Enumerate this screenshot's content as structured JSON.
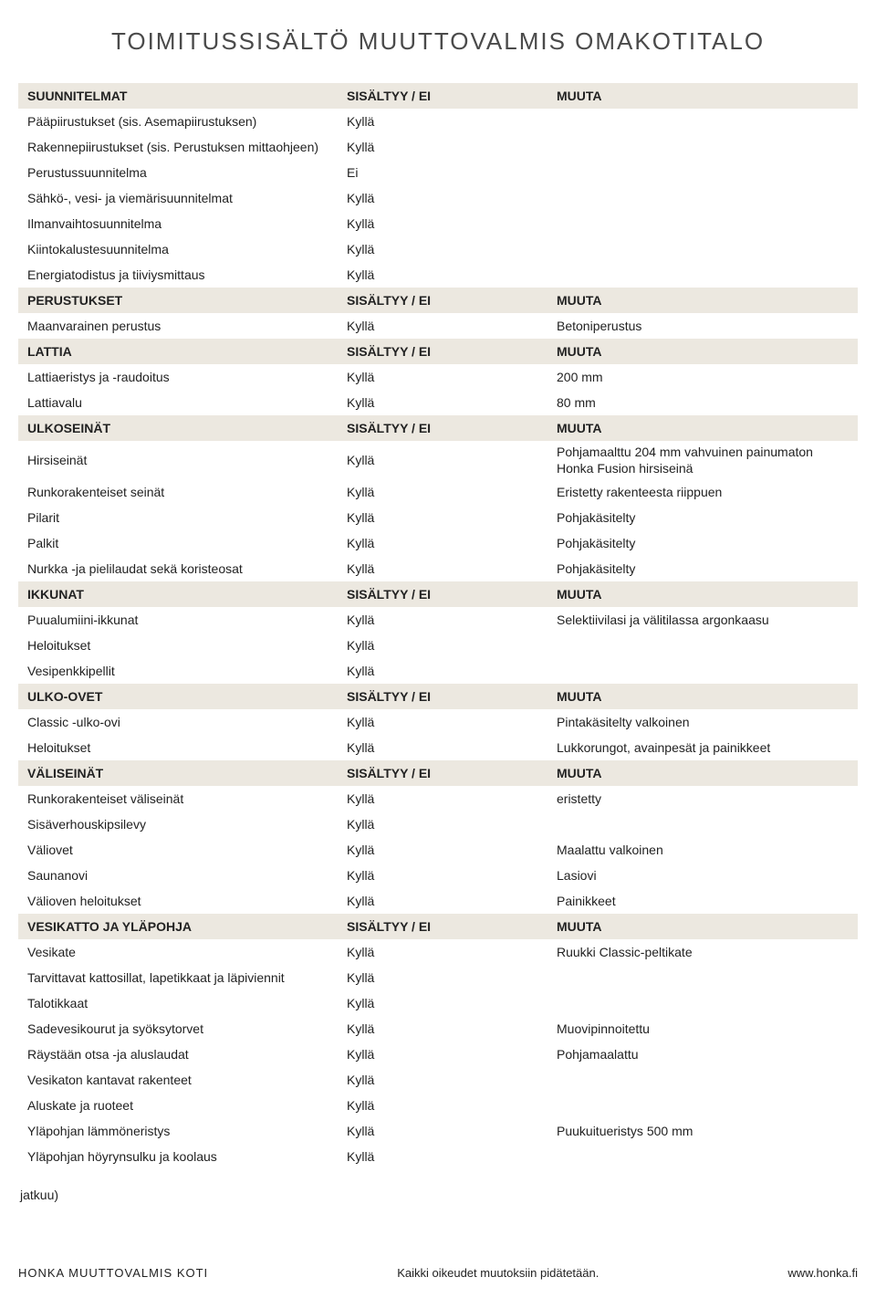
{
  "title": "TOIMITUSSISÄLTÖ MUUTTOVALMIS OMAKOTITALO",
  "col_sisaltyy": "SISÄLTYY / EI",
  "col_muuta": "MUUTA",
  "sections": [
    {
      "header": "SUUNNITELMAT",
      "rows": [
        {
          "label": "Pääpiirustukset (sis. Asemapiirustuksen)",
          "val": "Kyllä",
          "note": ""
        },
        {
          "label": "Rakennepiirustukset (sis. Perustuksen mittaohjeen)",
          "val": "Kyllä",
          "note": ""
        },
        {
          "label": "Perustussuunnitelma",
          "val": "Ei",
          "note": ""
        },
        {
          "label": "Sähkö-, vesi- ja viemärisuunnitelmat",
          "val": "Kyllä",
          "note": ""
        },
        {
          "label": "Ilmanvaihtosuunnitelma",
          "val": "Kyllä",
          "note": ""
        },
        {
          "label": "Kiintokalustesuunnitelma",
          "val": "Kyllä",
          "note": ""
        },
        {
          "label": "Energiatodistus ja tiiviysmittaus",
          "val": "Kyllä",
          "note": ""
        }
      ]
    },
    {
      "header": "PERUSTUKSET",
      "rows": [
        {
          "label": "Maanvarainen perustus",
          "val": "Kyllä",
          "note": "Betoniperustus"
        }
      ]
    },
    {
      "header": "LATTIA",
      "rows": [
        {
          "label": "Lattiaeristys ja -raudoitus",
          "val": "Kyllä",
          "note": "200 mm"
        },
        {
          "label": "Lattiavalu",
          "val": "Kyllä",
          "note": "80 mm"
        }
      ]
    },
    {
      "header": "ULKOSEINÄT",
      "rows": [
        {
          "label": "Hirsiseinät",
          "val": "Kyllä",
          "note": "Pohjamaalttu 204 mm vahvuinen painumaton Honka Fusion hirsiseinä"
        },
        {
          "label": "Runkorakenteiset seinät",
          "val": "Kyllä",
          "note": "Eristetty rakenteesta riippuen"
        },
        {
          "label": "Pilarit",
          "val": "Kyllä",
          "note": "Pohjakäsitelty"
        },
        {
          "label": "Palkit",
          "val": "Kyllä",
          "note": "Pohjakäsitelty"
        },
        {
          "label": "Nurkka -ja pielilaudat sekä koristeosat",
          "val": "Kyllä",
          "note": "Pohjakäsitelty"
        }
      ]
    },
    {
      "header": "IKKUNAT",
      "rows": [
        {
          "label": "Puualumiini-ikkunat",
          "val": "Kyllä",
          "note": "Selektiivilasi ja välitilassa argonkaasu"
        },
        {
          "label": "Heloitukset",
          "val": "Kyllä",
          "note": ""
        },
        {
          "label": "Vesipenkkipellit",
          "val": "Kyllä",
          "note": ""
        }
      ]
    },
    {
      "header": "ULKO-OVET",
      "rows": [
        {
          "label": "Classic -ulko-ovi",
          "val": "Kyllä",
          "note": "Pintakäsitelty valkoinen"
        },
        {
          "label": "Heloitukset",
          "val": "Kyllä",
          "note": "Lukkorungot, avainpesät ja painikkeet"
        }
      ]
    },
    {
      "header": "VÄLISEINÄT",
      "rows": [
        {
          "label": "Runkorakenteiset väliseinät",
          "val": "Kyllä",
          "note": "eristetty"
        },
        {
          "label": "Sisäverhouskipsilevy",
          "val": "Kyllä",
          "note": ""
        },
        {
          "label": "Väliovet",
          "val": "Kyllä",
          "note": "Maalattu valkoinen"
        },
        {
          "label": "Saunanovi",
          "val": "Kyllä",
          "note": "Lasiovi"
        },
        {
          "label": "Välioven heloitukset",
          "val": "Kyllä",
          "note": "Painikkeet"
        }
      ]
    },
    {
      "header": "VESIKATTO JA YLÄPOHJA",
      "rows": [
        {
          "label": "Vesikate",
          "val": "Kyllä",
          "note": "Ruukki Classic-peltikate"
        },
        {
          "label": "Tarvittavat kattosillat, lapetikkaat ja läpiviennit",
          "val": "Kyllä",
          "note": ""
        },
        {
          "label": "Talotikkaat",
          "val": "Kyllä",
          "note": ""
        },
        {
          "label": "Sadevesikourut ja syöksytorvet",
          "val": "Kyllä",
          "note": "Muovipinnoitettu"
        },
        {
          "label": "Räystään otsa -ja aluslaudat",
          "val": "Kyllä",
          "note": "Pohjamaalattu"
        },
        {
          "label": "Vesikaton kantavat rakenteet",
          "val": "Kyllä",
          "note": ""
        },
        {
          "label": "Aluskate ja ruoteet",
          "val": "Kyllä",
          "note": ""
        },
        {
          "label": "Yläpohjan lämmöneristys",
          "val": "Kyllä",
          "note": "Puukuitueristys 500 mm"
        },
        {
          "label": "Yläpohjan höyrynsulku ja koolaus",
          "val": "Kyllä",
          "note": ""
        }
      ]
    }
  ],
  "jatkuu": "jatkuu)",
  "footer": {
    "left": "HONKA MUUTTOVALMIS KOTI",
    "center": "Kaikki oikeudet muutoksiin pidätetään.",
    "right": "www.honka.fi"
  },
  "colors": {
    "section_bg": "#ece8e0",
    "text": "#222222",
    "title": "#4a4a4a"
  }
}
